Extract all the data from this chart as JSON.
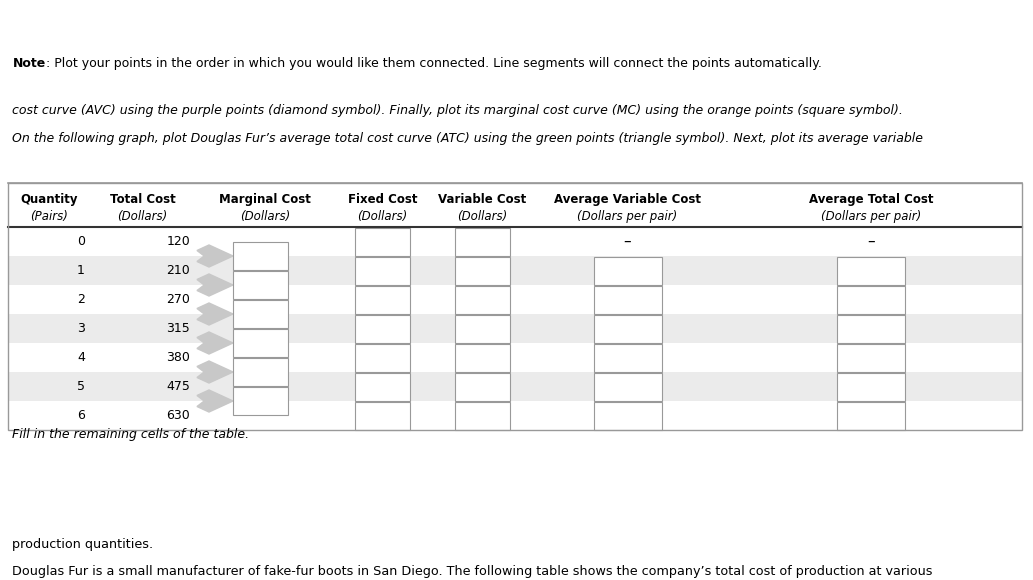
{
  "title_line1": "Douglas Fur is a small manufacturer of fake-fur boots in San Diego. The following table shows the company’s total cost of production at various",
  "title_line2": "production quantities.",
  "fill_in_text": "Fill in the remaining cells of the table.",
  "col_headers_bold": [
    "Quantity",
    "Total Cost",
    "Marginal Cost",
    "Fixed Cost",
    "Variable Cost",
    "Average Variable Cost",
    "Average Total Cost"
  ],
  "col_headers_italic": [
    "(Pairs)",
    "(Dollars)",
    "(Dollars)",
    "(Dollars)",
    "(Dollars)",
    "(Dollars per pair)",
    "(Dollars per pair)"
  ],
  "quantities": [
    0,
    1,
    2,
    3,
    4,
    5,
    6
  ],
  "total_costs": [
    120,
    210,
    270,
    315,
    380,
    475,
    630
  ],
  "bottom_italic": "On the following graph, plot Douglas Fur’s average total cost curve (ATC) using the green points (triangle symbol). Next, plot its average variable",
  "bottom_italic2": "cost curve (AVC) using the purple points (diamond symbol). Finally, plot its marginal cost curve (MC) using the orange points (square symbol).",
  "note_bold": "Note",
  "note_rest": ": Plot your points in the order in which you would like them connected. Line segments will connect the points automatically.",
  "bg_color": "#ffffff",
  "row_alt_bg": "#ebebeb",
  "row_normal_bg": "#ffffff",
  "text_color": "#000000",
  "border_color": "#999999",
  "box_edge_color": "#999999",
  "arrow_color": "#c8c8c8"
}
